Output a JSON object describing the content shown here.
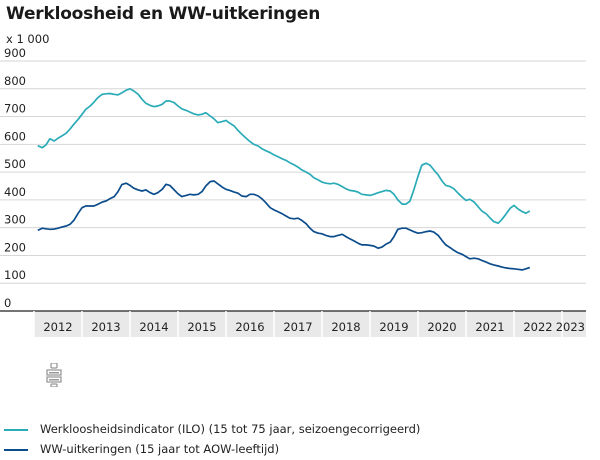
{
  "title": "Werkloosheid en WW-uitkeringen",
  "unit_label": "x 1 000",
  "logo_icon": "cbs-logo-icon",
  "colors": {
    "ilo": "#2aabb8",
    "ww": "#0b4c8c",
    "grid": "#d6d6d6",
    "axis": "#222222",
    "band": "#e9e9e9"
  },
  "chart_data": {
    "type": "line",
    "title": "Werkloosheid en WW-uitkeringen",
    "xlabel": "",
    "ylabel": "x 1 000",
    "ylim": [
      0,
      900
    ],
    "yticks": [
      0,
      100,
      200,
      300,
      400,
      500,
      600,
      700,
      800,
      900
    ],
    "xlim": [
      2011.5,
      2023.0
    ],
    "xticks": [
      {
        "value": 2012,
        "label": "2012"
      },
      {
        "value": 2013,
        "label": "2013"
      },
      {
        "value": 2014,
        "label": "2014"
      },
      {
        "value": 2015,
        "label": "2015"
      },
      {
        "value": 2016,
        "label": "2016"
      },
      {
        "value": 2017,
        "label": "2017"
      },
      {
        "value": 2018,
        "label": "2018"
      },
      {
        "value": 2019,
        "label": "2019"
      },
      {
        "value": 2020,
        "label": "2020"
      },
      {
        "value": 2021,
        "label": "2021"
      },
      {
        "value": 2022,
        "label": "2022"
      },
      {
        "value": 2023,
        "label": "2023"
      }
    ],
    "series": [
      {
        "name": "Werkloosheidsindicator (ILO) (15 tot 75 jaar, seizoengecorrigeerd)",
        "color": "#2aabb8",
        "points": [
          [
            2011.58,
            595
          ],
          [
            2011.67,
            588
          ],
          [
            2011.75,
            598
          ],
          [
            2011.83,
            620
          ],
          [
            2011.92,
            612
          ],
          [
            2012.0,
            622
          ],
          [
            2012.08,
            630
          ],
          [
            2012.17,
            640
          ],
          [
            2012.25,
            655
          ],
          [
            2012.33,
            672
          ],
          [
            2012.42,
            690
          ],
          [
            2012.5,
            708
          ],
          [
            2012.58,
            726
          ],
          [
            2012.67,
            738
          ],
          [
            2012.75,
            752
          ],
          [
            2012.83,
            768
          ],
          [
            2012.92,
            780
          ],
          [
            2013.0,
            782
          ],
          [
            2013.08,
            783
          ],
          [
            2013.17,
            780
          ],
          [
            2013.25,
            778
          ],
          [
            2013.33,
            785
          ],
          [
            2013.42,
            795
          ],
          [
            2013.5,
            800
          ],
          [
            2013.58,
            792
          ],
          [
            2013.67,
            780
          ],
          [
            2013.75,
            762
          ],
          [
            2013.83,
            748
          ],
          [
            2013.92,
            740
          ],
          [
            2014.0,
            736
          ],
          [
            2014.08,
            738
          ],
          [
            2014.17,
            744
          ],
          [
            2014.25,
            756
          ],
          [
            2014.33,
            756
          ],
          [
            2014.42,
            750
          ],
          [
            2014.5,
            738
          ],
          [
            2014.58,
            728
          ],
          [
            2014.67,
            722
          ],
          [
            2014.75,
            716
          ],
          [
            2014.83,
            710
          ],
          [
            2014.92,
            706
          ],
          [
            2015.0,
            708
          ],
          [
            2015.08,
            714
          ],
          [
            2015.17,
            702
          ],
          [
            2015.25,
            692
          ],
          [
            2015.33,
            678
          ],
          [
            2015.42,
            682
          ],
          [
            2015.5,
            686
          ],
          [
            2015.58,
            676
          ],
          [
            2015.67,
            666
          ],
          [
            2015.75,
            650
          ],
          [
            2015.83,
            636
          ],
          [
            2015.92,
            622
          ],
          [
            2016.0,
            610
          ],
          [
            2016.08,
            600
          ],
          [
            2016.17,
            594
          ],
          [
            2016.25,
            584
          ],
          [
            2016.33,
            577
          ],
          [
            2016.42,
            570
          ],
          [
            2016.5,
            562
          ],
          [
            2016.58,
            556
          ],
          [
            2016.67,
            548
          ],
          [
            2016.75,
            542
          ],
          [
            2016.83,
            534
          ],
          [
            2016.92,
            526
          ],
          [
            2017.0,
            518
          ],
          [
            2017.08,
            508
          ],
          [
            2017.17,
            500
          ],
          [
            2017.25,
            492
          ],
          [
            2017.33,
            480
          ],
          [
            2017.42,
            472
          ],
          [
            2017.5,
            464
          ],
          [
            2017.58,
            460
          ],
          [
            2017.67,
            458
          ],
          [
            2017.75,
            460
          ],
          [
            2017.83,
            456
          ],
          [
            2017.92,
            448
          ],
          [
            2018.0,
            440
          ],
          [
            2018.08,
            434
          ],
          [
            2018.17,
            432
          ],
          [
            2018.25,
            428
          ],
          [
            2018.33,
            420
          ],
          [
            2018.42,
            418
          ],
          [
            2018.5,
            416
          ],
          [
            2018.58,
            420
          ],
          [
            2018.67,
            426
          ],
          [
            2018.75,
            430
          ],
          [
            2018.83,
            434
          ],
          [
            2018.92,
            432
          ],
          [
            2019.0,
            420
          ],
          [
            2019.08,
            400
          ],
          [
            2019.17,
            385
          ],
          [
            2019.25,
            385
          ],
          [
            2019.33,
            395
          ],
          [
            2019.42,
            440
          ],
          [
            2019.5,
            485
          ],
          [
            2019.58,
            525
          ],
          [
            2019.67,
            532
          ],
          [
            2019.75,
            525
          ],
          [
            2019.83,
            508
          ],
          [
            2019.92,
            490
          ],
          [
            2020.0,
            468
          ],
          [
            2020.08,
            452
          ],
          [
            2020.17,
            448
          ],
          [
            2020.25,
            440
          ],
          [
            2020.33,
            425
          ],
          [
            2020.42,
            410
          ],
          [
            2020.5,
            398
          ],
          [
            2020.58,
            402
          ],
          [
            2020.67,
            392
          ],
          [
            2020.75,
            376
          ],
          [
            2020.83,
            360
          ],
          [
            2020.92,
            350
          ],
          [
            2021.0,
            335
          ],
          [
            2021.08,
            322
          ],
          [
            2021.17,
            316
          ],
          [
            2021.25,
            330
          ],
          [
            2021.33,
            348
          ],
          [
            2021.42,
            370
          ],
          [
            2021.5,
            380
          ],
          [
            2021.58,
            368
          ],
          [
            2021.67,
            358
          ],
          [
            2021.75,
            352
          ],
          [
            2021.83,
            360
          ]
        ]
      },
      {
        "name": "WW-uitkeringen (15 jaar tot AOW-leeftijd)",
        "color": "#0b4c8c",
        "points": [
          [
            2011.58,
            290
          ],
          [
            2011.67,
            298
          ],
          [
            2011.75,
            296
          ],
          [
            2011.83,
            294
          ],
          [
            2011.92,
            295
          ],
          [
            2012.0,
            298
          ],
          [
            2012.08,
            302
          ],
          [
            2012.17,
            306
          ],
          [
            2012.25,
            312
          ],
          [
            2012.33,
            326
          ],
          [
            2012.42,
            352
          ],
          [
            2012.5,
            372
          ],
          [
            2012.58,
            378
          ],
          [
            2012.67,
            378
          ],
          [
            2012.75,
            378
          ],
          [
            2012.83,
            384
          ],
          [
            2012.92,
            392
          ],
          [
            2013.0,
            396
          ],
          [
            2013.08,
            404
          ],
          [
            2013.17,
            412
          ],
          [
            2013.25,
            430
          ],
          [
            2013.33,
            455
          ],
          [
            2013.42,
            460
          ],
          [
            2013.5,
            452
          ],
          [
            2013.58,
            442
          ],
          [
            2013.67,
            436
          ],
          [
            2013.75,
            432
          ],
          [
            2013.83,
            436
          ],
          [
            2013.92,
            426
          ],
          [
            2014.0,
            420
          ],
          [
            2014.08,
            426
          ],
          [
            2014.17,
            438
          ],
          [
            2014.25,
            456
          ],
          [
            2014.33,
            452
          ],
          [
            2014.42,
            436
          ],
          [
            2014.5,
            422
          ],
          [
            2014.58,
            412
          ],
          [
            2014.67,
            416
          ],
          [
            2014.75,
            420
          ],
          [
            2014.83,
            418
          ],
          [
            2014.92,
            420
          ],
          [
            2015.0,
            430
          ],
          [
            2015.08,
            450
          ],
          [
            2015.17,
            466
          ],
          [
            2015.25,
            468
          ],
          [
            2015.33,
            458
          ],
          [
            2015.42,
            446
          ],
          [
            2015.5,
            438
          ],
          [
            2015.58,
            434
          ],
          [
            2015.67,
            428
          ],
          [
            2015.75,
            424
          ],
          [
            2015.83,
            414
          ],
          [
            2015.92,
            412
          ],
          [
            2016.0,
            420
          ],
          [
            2016.08,
            420
          ],
          [
            2016.17,
            414
          ],
          [
            2016.25,
            404
          ],
          [
            2016.33,
            390
          ],
          [
            2016.42,
            372
          ],
          [
            2016.5,
            364
          ],
          [
            2016.58,
            358
          ],
          [
            2016.67,
            350
          ],
          [
            2016.75,
            342
          ],
          [
            2016.83,
            334
          ],
          [
            2016.92,
            332
          ],
          [
            2017.0,
            334
          ],
          [
            2017.08,
            326
          ],
          [
            2017.17,
            314
          ],
          [
            2017.25,
            298
          ],
          [
            2017.33,
            286
          ],
          [
            2017.42,
            280
          ],
          [
            2017.5,
            278
          ],
          [
            2017.58,
            272
          ],
          [
            2017.67,
            268
          ],
          [
            2017.75,
            268
          ],
          [
            2017.83,
            272
          ],
          [
            2017.92,
            276
          ],
          [
            2018.0,
            268
          ],
          [
            2018.08,
            260
          ],
          [
            2018.17,
            252
          ],
          [
            2018.25,
            244
          ],
          [
            2018.33,
            238
          ],
          [
            2018.42,
            238
          ],
          [
            2018.5,
            236
          ],
          [
            2018.58,
            234
          ],
          [
            2018.67,
            226
          ],
          [
            2018.75,
            230
          ],
          [
            2018.83,
            240
          ],
          [
            2018.92,
            248
          ],
          [
            2019.0,
            268
          ],
          [
            2019.08,
            294
          ],
          [
            2019.17,
            298
          ],
          [
            2019.25,
            298
          ],
          [
            2019.33,
            292
          ],
          [
            2019.42,
            285
          ],
          [
            2019.5,
            280
          ],
          [
            2019.58,
            282
          ],
          [
            2019.67,
            286
          ],
          [
            2019.75,
            288
          ],
          [
            2019.83,
            284
          ],
          [
            2019.92,
            272
          ],
          [
            2020.0,
            254
          ],
          [
            2020.08,
            238
          ],
          [
            2020.17,
            228
          ],
          [
            2020.25,
            218
          ],
          [
            2020.33,
            210
          ],
          [
            2020.42,
            204
          ],
          [
            2020.5,
            196
          ],
          [
            2020.58,
            188
          ],
          [
            2020.67,
            190
          ],
          [
            2020.75,
            188
          ],
          [
            2020.83,
            182
          ],
          [
            2020.92,
            176
          ],
          [
            2021.0,
            170
          ],
          [
            2021.08,
            166
          ],
          [
            2021.17,
            162
          ],
          [
            2021.25,
            158
          ],
          [
            2021.33,
            155
          ],
          [
            2021.42,
            153
          ],
          [
            2021.5,
            152
          ],
          [
            2021.58,
            150
          ],
          [
            2021.67,
            148
          ],
          [
            2021.75,
            152
          ],
          [
            2021.83,
            157
          ]
        ]
      }
    ]
  },
  "legend": [
    {
      "label": "Werkloosheidsindicator (ILO) (15 tot 75 jaar, seizoengecorrigeerd)",
      "color": "#2aabb8"
    },
    {
      "label": "WW-uitkeringen (15 jaar tot AOW-leeftijd)",
      "color": "#0b4c8c"
    }
  ]
}
